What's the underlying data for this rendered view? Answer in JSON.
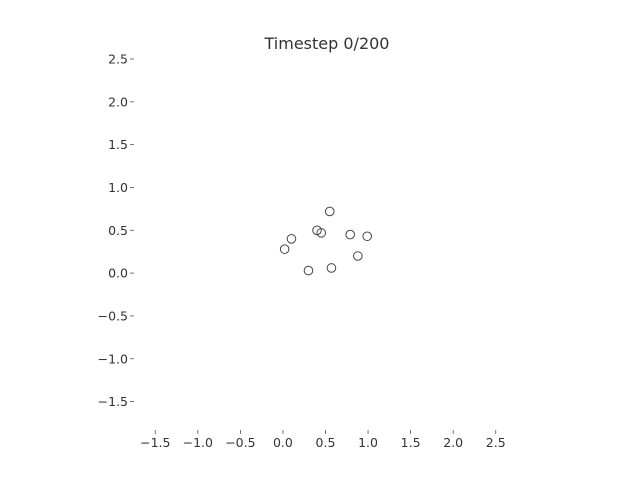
{
  "chart_data": {
    "type": "scatter",
    "title": "Timestep 0/200",
    "xlabel": "",
    "ylabel": "",
    "xlim": [
      -1.75,
      2.75
    ],
    "ylim": [
      -1.75,
      2.5
    ],
    "xticks": [
      -1.5,
      -1.0,
      -0.5,
      0.0,
      0.5,
      1.0,
      1.5,
      2.0,
      2.5
    ],
    "xtick_labels": [
      "−1.5",
      "−1.0",
      "−0.5",
      "0.0",
      "0.5",
      "1.0",
      "1.5",
      "2.0",
      "2.5"
    ],
    "yticks": [
      -1.5,
      -1.0,
      -0.5,
      0.0,
      0.5,
      1.0,
      1.5,
      2.0,
      2.5
    ],
    "ytick_labels": [
      "−1.5",
      "−1.0",
      "−0.5",
      "0.0",
      "0.5",
      "1.0",
      "1.5",
      "2.0",
      "2.5"
    ],
    "grid": false,
    "frame": false,
    "marker": "hollow-circle",
    "marker_color": "#444444",
    "points": [
      {
        "x": 0.55,
        "y": 0.72
      },
      {
        "x": 0.4,
        "y": 0.5
      },
      {
        "x": 0.45,
        "y": 0.47
      },
      {
        "x": 0.1,
        "y": 0.4
      },
      {
        "x": 0.79,
        "y": 0.45
      },
      {
        "x": 0.99,
        "y": 0.43
      },
      {
        "x": 0.02,
        "y": 0.28
      },
      {
        "x": 0.88,
        "y": 0.2
      },
      {
        "x": 0.3,
        "y": 0.03
      },
      {
        "x": 0.57,
        "y": 0.06
      }
    ]
  }
}
